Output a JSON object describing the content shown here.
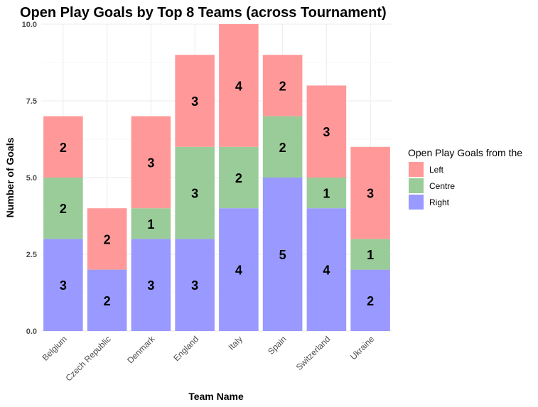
{
  "chart_data": {
    "type": "bar",
    "stacked": true,
    "title": "Open Play Goals by Top 8 Teams (across Tournament)",
    "xlabel": "Team Name",
    "ylabel": "Number of Goals",
    "ylim": [
      0,
      10
    ],
    "yticks": [
      0,
      2.5,
      5,
      7.5,
      10
    ],
    "ytick_labels": [
      "0.0",
      "2.5",
      "5.0",
      "7.5",
      "10.0"
    ],
    "grid": true,
    "legend_position": "right",
    "legend_title": "Open Play Goals from the",
    "categories": [
      "Belgium",
      "Czech Republic",
      "Denmark",
      "England",
      "Italy",
      "Spain",
      "Switzerland",
      "Ukraine"
    ],
    "series": [
      {
        "name": "Right",
        "color": "#9999ff",
        "values": [
          3,
          2,
          3,
          3,
          4,
          5,
          4,
          2
        ]
      },
      {
        "name": "Centre",
        "color": "#99cc99",
        "values": [
          2,
          0,
          1,
          3,
          2,
          2,
          1,
          1
        ]
      },
      {
        "name": "Left",
        "color": "#ff9999",
        "values": [
          2,
          2,
          3,
          3,
          4,
          2,
          3,
          3
        ]
      }
    ],
    "legend_order": [
      "Left",
      "Centre",
      "Right"
    ]
  }
}
